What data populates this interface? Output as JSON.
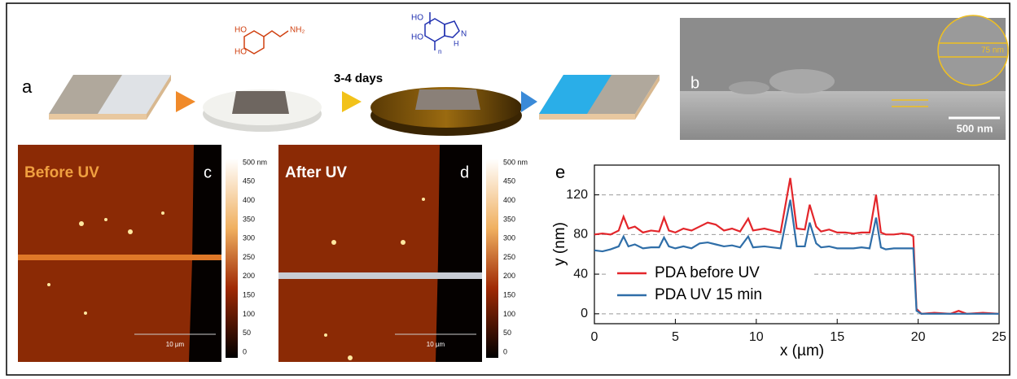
{
  "figure": {
    "panel_a": {
      "label": "a",
      "step_label": "3-4 days",
      "dopamine_labels": [
        "HO",
        "HO",
        "NH₂"
      ],
      "polymer_labels": [
        "HO",
        "HO",
        "N",
        "H",
        "n"
      ]
    },
    "panel_b": {
      "label": "b",
      "thickness": "75 nm",
      "scale_bar": "500 nm"
    },
    "panel_c": {
      "title": "Before UV",
      "label": "c",
      "colorbar_ticks": [
        "500 nm",
        "450",
        "400",
        "350",
        "300",
        "250",
        "200",
        "150",
        "100",
        "50",
        "0"
      ],
      "scale_bar": "10 µm"
    },
    "panel_d": {
      "title": "After UV",
      "label": "d",
      "colorbar_ticks": [
        "500 nm",
        "450",
        "400",
        "350",
        "300",
        "250",
        "200",
        "150",
        "100",
        "50",
        "0"
      ],
      "scale_bar": "10 µm"
    }
  },
  "chart_data": {
    "type": "line",
    "panel_label": "e",
    "xlabel": "x (µm)",
    "ylabel": "y (nm)",
    "x": [
      0,
      0.5,
      1,
      1.5,
      1.8,
      2.1,
      2.5,
      3,
      3.5,
      4,
      4.3,
      4.6,
      5,
      5.5,
      6,
      6.5,
      7,
      7.5,
      8,
      8.5,
      9,
      9.5,
      9.8,
      10.5,
      11,
      11.5,
      12.1,
      12.5,
      13,
      13.3,
      13.7,
      14,
      14.5,
      15,
      15.5,
      16,
      16.5,
      17,
      17.4,
      17.7,
      18,
      18.5,
      19,
      19.5,
      19.7,
      19.9,
      20.2,
      21,
      22,
      22.5,
      23,
      24,
      25
    ],
    "series": [
      {
        "name": "PDA before UV",
        "color": "#e3262b",
        "values": [
          80,
          81,
          80,
          84,
          98,
          86,
          88,
          82,
          84,
          83,
          97,
          84,
          82,
          86,
          84,
          88,
          92,
          90,
          84,
          86,
          83,
          96,
          84,
          86,
          84,
          82,
          137,
          86,
          85,
          110,
          88,
          83,
          85,
          82,
          82,
          81,
          82,
          82,
          120,
          82,
          80,
          80,
          81,
          80,
          78,
          5,
          0,
          1,
          0,
          3,
          0,
          1,
          0
        ]
      },
      {
        "name": "PDA UV 15 min",
        "color": "#2f6ea8",
        "values": [
          64,
          63,
          65,
          68,
          78,
          68,
          70,
          66,
          67,
          67,
          77,
          68,
          66,
          68,
          66,
          71,
          72,
          70,
          68,
          69,
          67,
          78,
          67,
          68,
          67,
          66,
          115,
          68,
          68,
          92,
          71,
          67,
          68,
          66,
          66,
          66,
          67,
          66,
          97,
          67,
          65,
          66,
          66,
          66,
          66,
          3,
          0,
          0,
          0,
          0,
          0,
          0,
          0
        ]
      }
    ],
    "xlim": [
      0,
      25
    ],
    "ylim": [
      -10,
      150
    ],
    "xticks": [
      0,
      5,
      10,
      15,
      20,
      25
    ],
    "yticks": [
      0,
      40,
      80,
      120
    ],
    "grid": true,
    "legend": "lower left"
  }
}
